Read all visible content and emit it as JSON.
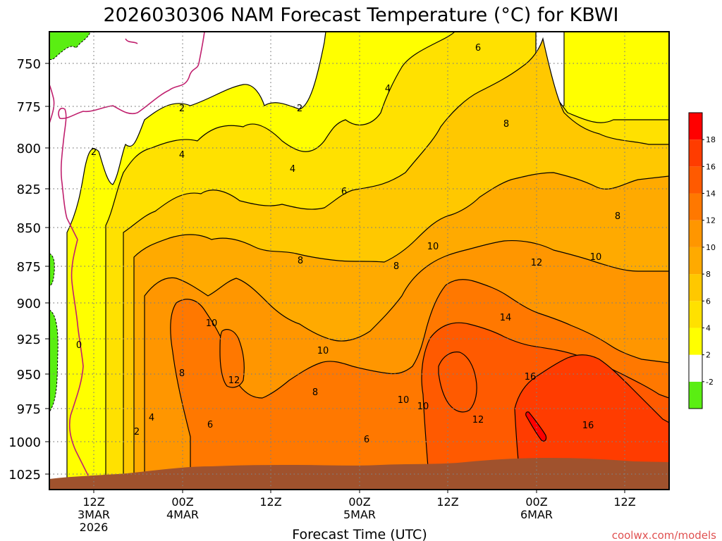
{
  "title": "2026030306 NAM Forecast Temperature (°C) for KBWI",
  "xlabel": "Forecast Time (UTC)",
  "credit": "coolwx.com/models",
  "colors": {
    "credit": "#e05050",
    "terrain": "#a0522d",
    "freezing_line": "#c0206e",
    "contour": "#000000",
    "grid": "#808080"
  },
  "chart_data": {
    "type": "heatmap",
    "title": "2026030306 NAM Forecast Temperature (°C) for KBWI",
    "xlabel": "Forecast Time (UTC)",
    "ylabel": "",
    "y_scale": "pressure (hPa), inverted",
    "ylim": [
      1040,
      730
    ],
    "y_ticks": [
      "750",
      "775",
      "800",
      "825",
      "850",
      "875",
      "900",
      "925",
      "950",
      "975",
      "1000",
      "1025"
    ],
    "x_ticks": [
      {
        "lines": [
          "12Z",
          "3MAR",
          "2026"
        ]
      },
      {
        "lines": [
          "00Z",
          "4MAR"
        ]
      },
      {
        "lines": [
          "12Z"
        ]
      },
      {
        "lines": [
          "00Z",
          "5MAR"
        ]
      },
      {
        "lines": [
          "12Z"
        ]
      },
      {
        "lines": [
          "00Z",
          "6MAR"
        ]
      },
      {
        "lines": [
          "12Z"
        ]
      }
    ],
    "grid": true,
    "colorbar": {
      "labels": [
        "-2",
        "2",
        "4",
        "6",
        "8",
        "10",
        "12",
        "14",
        "16",
        "18"
      ],
      "bins": [
        {
          "lo": -4,
          "hi": -2,
          "color": "#5aee12"
        },
        {
          "lo": -2,
          "hi": 2,
          "color": "#ffffff"
        },
        {
          "lo": 2,
          "hi": 4,
          "color": "#ffff00"
        },
        {
          "lo": 4,
          "hi": 6,
          "color": "#ffe100"
        },
        {
          "lo": 6,
          "hi": 8,
          "color": "#ffc800"
        },
        {
          "lo": 8,
          "hi": 10,
          "color": "#ffaa00"
        },
        {
          "lo": 10,
          "hi": 12,
          "color": "#ff9600"
        },
        {
          "lo": 12,
          "hi": 14,
          "color": "#ff7800"
        },
        {
          "lo": 14,
          "hi": 16,
          "color": "#ff5a00"
        },
        {
          "lo": 16,
          "hi": 18,
          "color": "#ff3c00"
        },
        {
          "lo": 18,
          "hi": 20,
          "color": "#ff0000"
        }
      ]
    },
    "contour_labels": [
      "0",
      "2",
      "2",
      "2",
      "2",
      "4",
      "4",
      "4",
      "4",
      "6",
      "6",
      "6",
      "6",
      "8",
      "8",
      "8",
      "8",
      "8",
      "8",
      "10",
      "10",
      "10",
      "10",
      "10",
      "10",
      "12",
      "12",
      "12",
      "14",
      "16",
      "16"
    ]
  }
}
